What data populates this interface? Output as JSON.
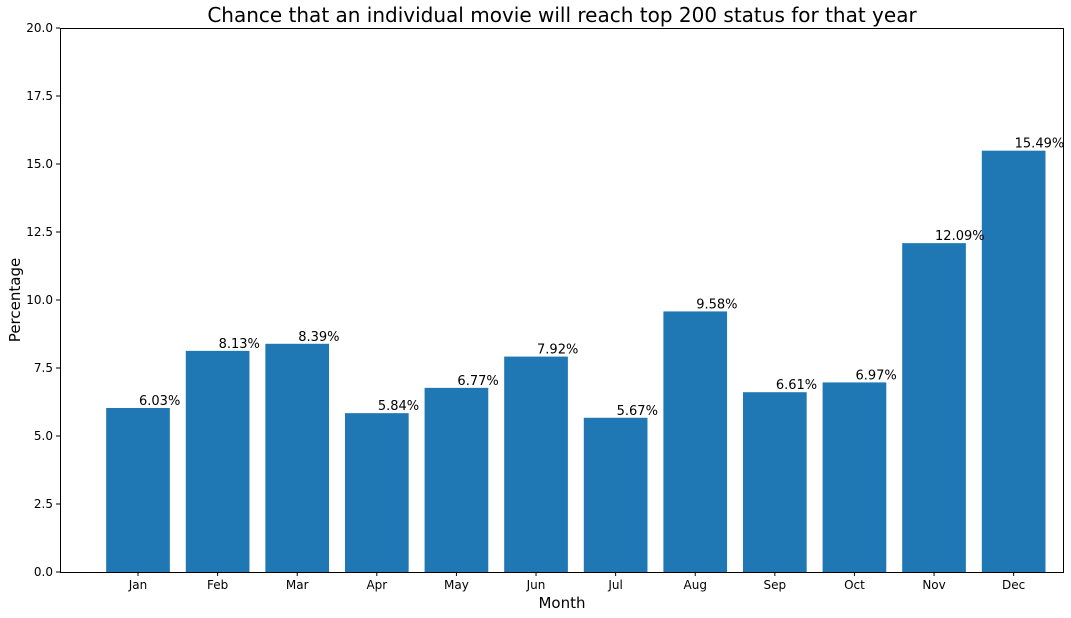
{
  "chart_data": {
    "type": "bar",
    "title": "Chance that an individual movie will reach top 200 status for that year",
    "xlabel": "Month",
    "ylabel": "Percentage",
    "categories": [
      "Jan",
      "Feb",
      "Mar",
      "Apr",
      "May",
      "Jun",
      "Jul",
      "Aug",
      "Sep",
      "Oct",
      "Nov",
      "Dec"
    ],
    "values": [
      6.03,
      8.13,
      8.39,
      5.84,
      6.77,
      7.92,
      5.67,
      9.58,
      6.61,
      6.97,
      12.09,
      15.49
    ],
    "data_labels": [
      "6.03%",
      "8.13%",
      "8.39%",
      "5.84%",
      "6.77%",
      "7.92%",
      "5.67%",
      "9.58%",
      "6.61%",
      "6.97%",
      "12.09%",
      "15.49%"
    ],
    "ylim": [
      0,
      20
    ],
    "yticks": [
      0,
      2.5,
      5,
      7.5,
      10,
      12.5,
      15,
      17.5,
      20
    ],
    "ytick_labels": [
      "0.0",
      "2.5",
      "5.0",
      "7.5",
      "10.0",
      "12.5",
      "15.0",
      "17.5",
      "20.0"
    ],
    "grid": false,
    "legend": "none",
    "bar_color": "#1f77b4"
  }
}
